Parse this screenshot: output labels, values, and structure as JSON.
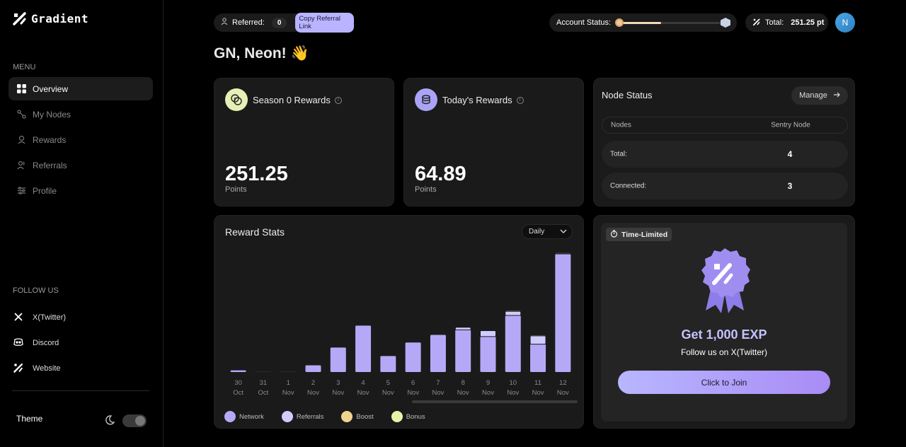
{
  "brand": {
    "name": "Gradient"
  },
  "sidebar": {
    "menu_label": "MENU",
    "items": [
      {
        "label": "Overview",
        "icon": "grid-icon",
        "active": true
      },
      {
        "label": "My Nodes",
        "icon": "nodes-icon"
      },
      {
        "label": "Rewards",
        "icon": "rewards-icon"
      },
      {
        "label": "Referrals",
        "icon": "users-icon"
      },
      {
        "label": "Profile",
        "icon": "profile-icon"
      }
    ],
    "follow_label": "FOLLOW US",
    "follow": [
      {
        "label": "X(Twitter)",
        "icon": "x-icon"
      },
      {
        "label": "Discord",
        "icon": "discord-icon"
      },
      {
        "label": "Website",
        "icon": "gradient-icon"
      }
    ],
    "theme_label": "Theme"
  },
  "topbar": {
    "referred_label": "Referred:",
    "referred_count": "0",
    "copy_label": "Copy Referral Link",
    "status_label": "Account Status:",
    "status_progress": 0.4,
    "total_label": "Total:",
    "total_value": "251.25 pt",
    "avatar_initial": "N"
  },
  "greeting": "GN, Neon! 👋",
  "season_card": {
    "title": "Season 0 Rewards",
    "value": "251.25",
    "unit": "Points"
  },
  "today_card": {
    "title": "Today's Rewards",
    "value": "64.89",
    "unit": "Points"
  },
  "node_status": {
    "title": "Node Status",
    "manage_label": "Manage",
    "header": {
      "col1": "Nodes",
      "col2": "Sentry Node"
    },
    "rows": [
      {
        "label": "Total:",
        "value": "4"
      },
      {
        "label": "Connected:",
        "value": "3"
      }
    ]
  },
  "reward_stats": {
    "title": "Reward Stats",
    "period": "Daily"
  },
  "chart_data": {
    "type": "bar",
    "stacked": true,
    "categories": [
      [
        "30",
        "Oct"
      ],
      [
        "31",
        "Oct"
      ],
      [
        "1",
        "Nov"
      ],
      [
        "2",
        "Nov"
      ],
      [
        "3",
        "Nov"
      ],
      [
        "4",
        "Nov"
      ],
      [
        "5",
        "Nov"
      ],
      [
        "6",
        "Nov"
      ],
      [
        "7",
        "Nov"
      ],
      [
        "8",
        "Nov"
      ],
      [
        "9",
        "Nov"
      ],
      [
        "10",
        "Nov"
      ],
      [
        "11",
        "Nov"
      ],
      [
        "12",
        "Nov"
      ]
    ],
    "series": [
      {
        "name": "Network",
        "color": "#b5a9f7",
        "values": [
          2,
          0,
          0,
          8,
          29,
          55,
          19,
          35,
          44,
          50,
          42,
          67,
          33,
          140
        ]
      },
      {
        "name": "Referrals",
        "color": "#d0ccff",
        "values": [
          0,
          0,
          0,
          0,
          0,
          0,
          0,
          0,
          0,
          3,
          7,
          5,
          10,
          0
        ]
      },
      {
        "name": "Boost",
        "color": "#f2d38e",
        "values": [
          0,
          0,
          0,
          0,
          0,
          0,
          0,
          0,
          0,
          0,
          0,
          1,
          1,
          1
        ]
      },
      {
        "name": "Bonus",
        "color": "#e8f5a8",
        "values": [
          0,
          0,
          0,
          0,
          0,
          0,
          0,
          0,
          0,
          0,
          0,
          0,
          0,
          1
        ]
      }
    ],
    "ylim": [
      0,
      145
    ]
  },
  "promo": {
    "badge": "Time-Limited",
    "title": "Get 1,000 EXP",
    "subtitle": "Follow us on X(Twitter)",
    "button": "Click to Join"
  }
}
